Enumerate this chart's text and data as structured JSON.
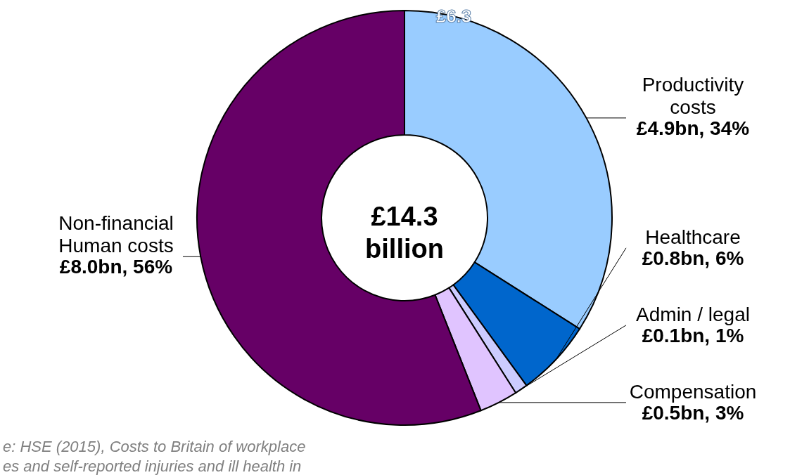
{
  "chart_data": {
    "type": "donut",
    "categories": [
      "Productivity costs",
      "Healthcare",
      "Admin / legal",
      "Compensation",
      "Non-financial Human costs"
    ],
    "values": [
      34,
      6,
      1,
      3,
      56
    ],
    "colors": [
      "#99ccff",
      "#0066cc",
      "#ccccff",
      "#e0c4ff",
      "#660066"
    ],
    "value_labels": [
      "£4.9bn, 34%",
      "£0.8bn, 6%",
      "£0.1bn, 1%",
      "£0.5bn, 3%",
      "£8.0bn, 56%"
    ],
    "annotations": [
      "£14.3 billion",
      "£6.3",
      "e: HSE (2015), Costs to Britain of workplace",
      "es and self-reported injuries and ill health in"
    ]
  }
}
